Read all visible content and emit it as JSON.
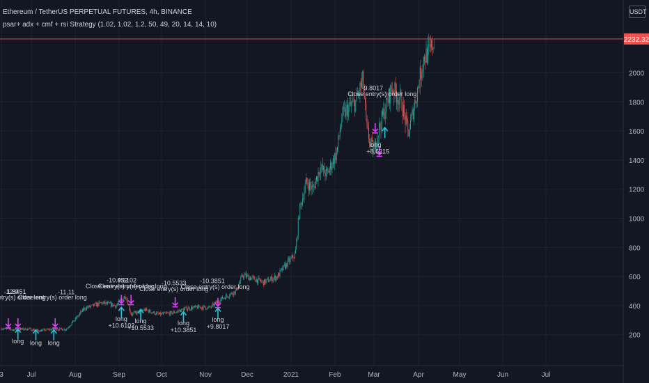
{
  "header": {
    "title": "Ethereum / TetherUS PERPETUAL FUTURES, 4h, BINANCE",
    "strategy": "psar+ adx + cmf + rsi Strategy (1.02, 1.02, 1.2, 50, 49, 20, 14, 14, 10)",
    "currency": "USDT"
  },
  "chart_data": {
    "type": "candlestick",
    "x_ticks": [
      "3",
      "Jul",
      "Aug",
      "Sep",
      "Oct",
      "Nov",
      "Dec",
      "2021",
      "Feb",
      "Mar",
      "Apr",
      "May",
      "Jun",
      "Jul"
    ],
    "y_ticks": [
      200,
      400,
      600,
      800,
      1000,
      1200,
      1400,
      1600,
      1800,
      2000
    ],
    "ylim": [
      130,
      2400
    ],
    "last_price": {
      "value": 2232.32,
      "label": "2232.32",
      "color": "#ef5350"
    },
    "grid": true,
    "colors": {
      "up": "#26a69a",
      "down": "#ef5350",
      "entry": "#26c6da",
      "exit": "#e040fb"
    },
    "price_path": [
      [
        "2020-06-03",
        243
      ],
      [
        "2020-06-12",
        235
      ],
      [
        "2020-06-22",
        240
      ],
      [
        "2020-07-01",
        228
      ],
      [
        "2020-07-10",
        238
      ],
      [
        "2020-07-20",
        238
      ],
      [
        "2020-07-27",
        312
      ],
      [
        "2020-08-02",
        380
      ],
      [
        "2020-08-15",
        420
      ],
      [
        "2020-08-25",
        400
      ],
      [
        "2020-09-01",
        470
      ],
      [
        "2020-09-05",
        340
      ],
      [
        "2020-09-15",
        372
      ],
      [
        "2020-09-25",
        340
      ],
      [
        "2020-10-05",
        350
      ],
      [
        "2020-10-15",
        380
      ],
      [
        "2020-10-25",
        390
      ],
      [
        "2020-11-01",
        385
      ],
      [
        "2020-11-10",
        450
      ],
      [
        "2020-11-20",
        500
      ],
      [
        "2020-11-25",
        610
      ],
      [
        "2020-12-01",
        590
      ],
      [
        "2020-12-10",
        560
      ],
      [
        "2020-12-20",
        600
      ],
      [
        "2020-12-27",
        690
      ],
      [
        "2021-01-02",
        750
      ],
      [
        "2021-01-05",
        1050
      ],
      [
        "2021-01-10",
        1250
      ],
      [
        "2021-01-15",
        1200
      ],
      [
        "2021-01-20",
        1350
      ],
      [
        "2021-01-25",
        1300
      ],
      [
        "2021-02-01",
        1450
      ],
      [
        "2021-02-05",
        1700
      ],
      [
        "2021-02-10",
        1760
      ],
      [
        "2021-02-15",
        1800
      ],
      [
        "2021-02-20",
        1950
      ],
      [
        "2021-02-23",
        1600
      ],
      [
        "2021-02-28",
        1450
      ],
      [
        "2021-03-02",
        1560
      ],
      [
        "2021-03-08",
        1750
      ],
      [
        "2021-03-13",
        1900
      ],
      [
        "2021-03-20",
        1800
      ],
      [
        "2021-03-25",
        1580
      ],
      [
        "2021-04-01",
        1900
      ],
      [
        "2021-04-05",
        2100
      ],
      [
        "2021-04-10",
        2150
      ],
      [
        "2021-04-13",
        2232.32
      ]
    ],
    "labels": [
      {
        "text": "-12.0",
        "x": "2020-06-10",
        "y": 480
      },
      {
        "text": "1.8451",
        "x": "2020-06-14",
        "y": 480
      },
      {
        "text": "-11.11",
        "x": "2020-07-20",
        "y": 478
      },
      {
        "text": "Close entry(s) order long",
        "x": "2020-06-10",
        "y": 442
      },
      {
        "text": "Close entry(s) order long",
        "x": "2020-07-10",
        "y": 442
      },
      {
        "text": "-10.952",
        "x": "2020-08-26",
        "y": 560
      },
      {
        "text": "4.6102",
        "x": "2020-09-02",
        "y": 560
      },
      {
        "text": "Close entry(s) order long",
        "x": "2020-08-28",
        "y": 520
      },
      {
        "text": "Close entry(s) order long",
        "x": "2020-09-06",
        "y": 520
      },
      {
        "text": "-10.5533",
        "x": "2020-10-06",
        "y": 540
      },
      {
        "text": "Close entry(s) order long",
        "x": "2020-10-06",
        "y": 500
      },
      {
        "text": "-10.3851",
        "x": "2020-11-03",
        "y": 555
      },
      {
        "text": "Close entry(s) order long",
        "x": "2020-11-05",
        "y": 515
      },
      {
        "text": "-9.8017",
        "x": "2021-02-27",
        "y": 1880
      },
      {
        "text": "Close entry(s) order long",
        "x": "2021-03-06",
        "y": 1840
      },
      {
        "text": "long",
        "x": "2020-06-15",
        "y": 140
      },
      {
        "text": "long",
        "x": "2020-06-28",
        "y": 130
      },
      {
        "text": "long",
        "x": "2020-07-11",
        "y": 130
      },
      {
        "text": "long",
        "x": "2020-08-29",
        "y": 295
      },
      {
        "text": "+10.6102",
        "x": "2020-08-29",
        "y": 248
      },
      {
        "text": "long",
        "x": "2020-09-12",
        "y": 280
      },
      {
        "text": "+10.5533",
        "x": "2020-09-12",
        "y": 232
      },
      {
        "text": "long",
        "x": "2020-10-13",
        "y": 265
      },
      {
        "text": "+10.3851",
        "x": "2020-10-13",
        "y": 218
      },
      {
        "text": "long",
        "x": "2020-11-07",
        "y": 290
      },
      {
        "text": "+9.8017",
        "x": "2020-11-07",
        "y": 242
      },
      {
        "text": "long",
        "x": "2021-03-01",
        "y": 1490
      },
      {
        "text": "+8.6215",
        "x": "2021-03-03",
        "y": 1445
      }
    ],
    "entries": [
      {
        "x": "2020-06-15",
        "y": 205
      },
      {
        "x": "2020-06-28",
        "y": 200
      },
      {
        "x": "2020-07-11",
        "y": 200
      },
      {
        "x": "2020-08-29",
        "y": 355
      },
      {
        "x": "2020-09-12",
        "y": 340
      },
      {
        "x": "2020-10-13",
        "y": 325
      },
      {
        "x": "2020-11-07",
        "y": 350
      },
      {
        "x": "2021-03-08",
        "y": 1590
      }
    ],
    "exits": [
      {
        "x": "2020-06-08",
        "y": 280
      },
      {
        "x": "2020-06-15",
        "y": 280
      },
      {
        "x": "2020-07-12",
        "y": 280
      },
      {
        "x": "2020-08-29",
        "y": 440
      },
      {
        "x": "2020-09-05",
        "y": 440
      },
      {
        "x": "2020-10-07",
        "y": 425
      },
      {
        "x": "2020-11-07",
        "y": 420
      },
      {
        "x": "2021-03-01",
        "y": 1620
      },
      {
        "x": "2021-03-04",
        "y": 1460
      }
    ]
  }
}
